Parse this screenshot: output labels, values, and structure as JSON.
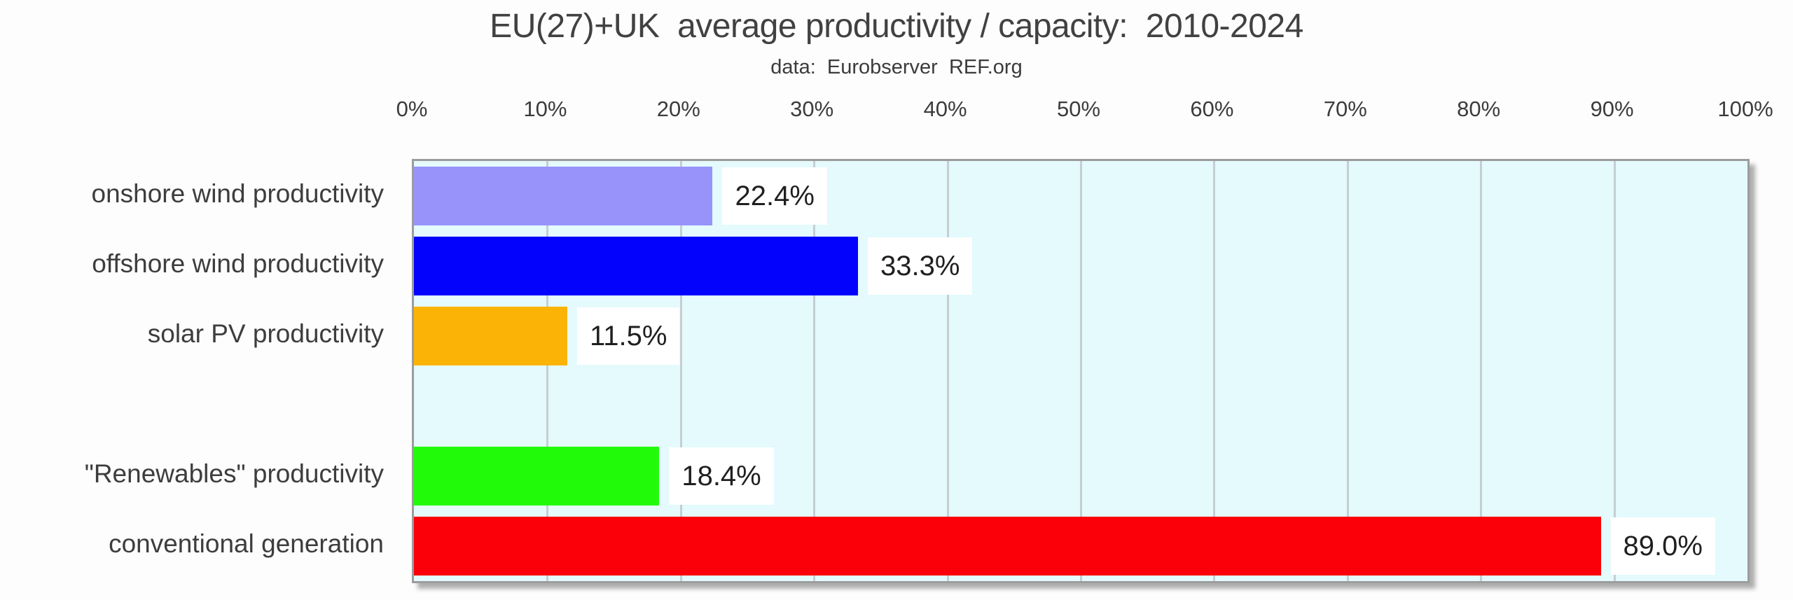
{
  "chart_data": {
    "type": "bar",
    "orientation": "horizontal",
    "title": "EU(27)+UK  average productivity / capacity:  2010-2024",
    "subtitle": "data:  Eurobserver  REF.org",
    "x_ticks": [
      "0%",
      "10%",
      "20%",
      "30%",
      "40%",
      "50%",
      "60%",
      "70%",
      "80%",
      "90%",
      "100%"
    ],
    "xlim": [
      0,
      100
    ],
    "grid": true,
    "legend": "none",
    "categories": [
      "onshore wind productivity",
      "offshore wind productivity",
      "solar PV productivity",
      "",
      "\"Renewables\" productivity",
      "conventional generation"
    ],
    "values": [
      22.4,
      33.3,
      11.5,
      null,
      18.4,
      89.0
    ],
    "value_labels": [
      "22.4%",
      "33.3%",
      "11.5%",
      "",
      "18.4%",
      "89.0%"
    ],
    "bar_colors": [
      "#9893fa",
      "#0202fd",
      "#fbb306",
      "",
      "#21fb0a",
      "#fb0008"
    ],
    "colors": {
      "plot_bg": "#e4fafc",
      "gridline": "#c6ced1",
      "title_text": "#414141",
      "label_text": "#3d3d3d",
      "value_text": "#1f1f1f",
      "value_label_bg": "#ffffff",
      "plot_border": "#9c9c9c"
    }
  }
}
